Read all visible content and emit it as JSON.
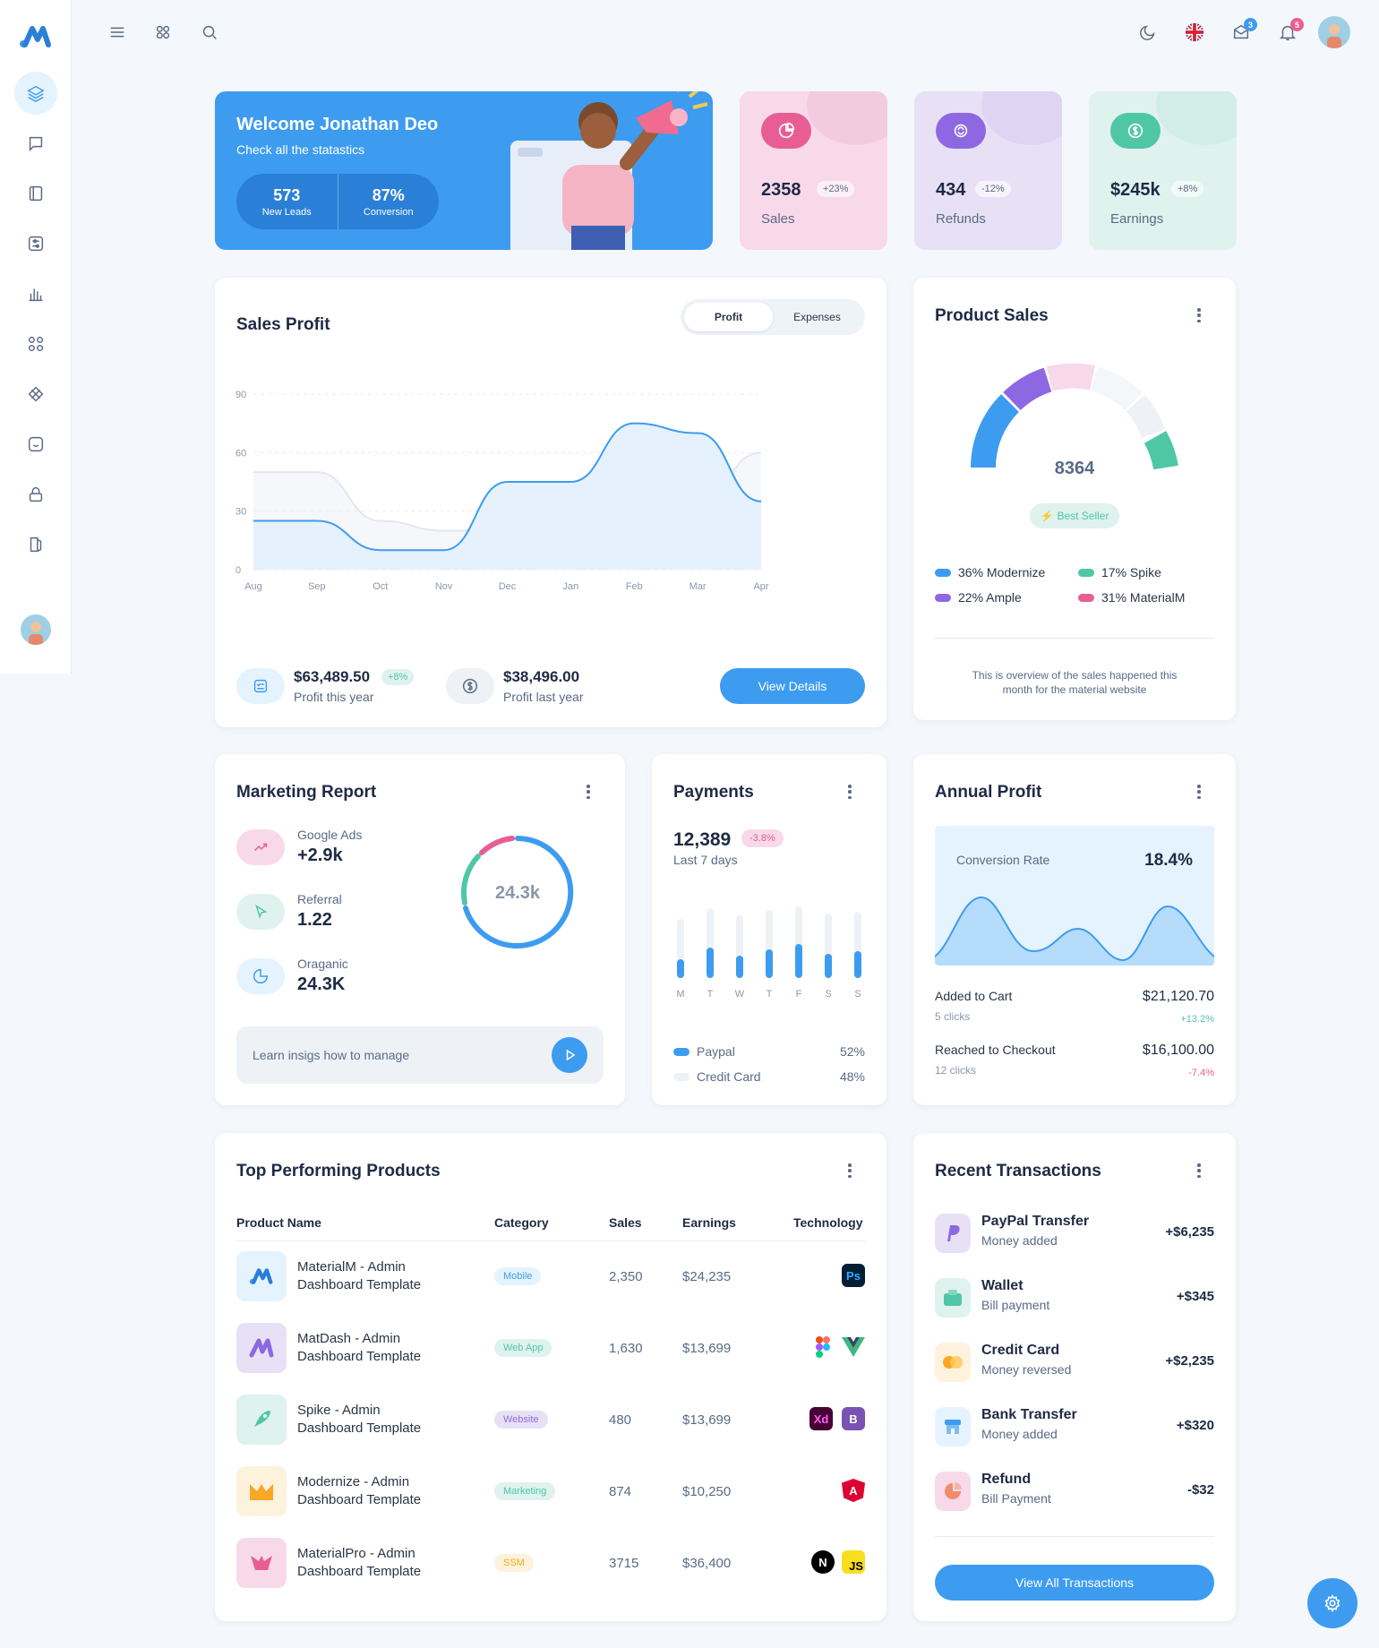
{
  "topbar": {
    "messages_badge": "3",
    "notifications_badge": "5"
  },
  "welcome": {
    "title": "Welcome Jonathan Deo",
    "subtitle": "Check all the statastics",
    "leads_value": "573",
    "leads_label": "New Leads",
    "conversion_value": "87%",
    "conversion_label": "Conversion"
  },
  "stats": [
    {
      "value": "2358",
      "change": "+23%",
      "label": "Sales",
      "color": "#f7d9ea",
      "accent": "#e85d94"
    },
    {
      "value": "434",
      "change": "-12%",
      "label": "Refunds",
      "color": "#e8e1f6",
      "accent": "#8e68e3"
    },
    {
      "value": "$245k",
      "change": "+8%",
      "label": "Earnings",
      "color": "#dff2ee",
      "accent": "#4fc7a7"
    }
  ],
  "sales_profit": {
    "title": "Sales Profit",
    "toggle": [
      "Profit",
      "Expenses"
    ],
    "profit_this_year": "$63,489.50",
    "profit_this_year_change": "+8%",
    "profit_this_year_label": "Profit this year",
    "profit_last_year": "$38,496.00",
    "profit_last_year_label": "Profit last year",
    "button": "View Details"
  },
  "chart_data": {
    "type": "area",
    "categories": [
      "Aug",
      "Sep",
      "Oct",
      "Nov",
      "Dec",
      "Jan",
      "Feb",
      "Mar",
      "Apr"
    ],
    "series": [
      {
        "values": [
          25,
          25,
          10,
          10,
          45,
          45,
          75,
          70,
          35
        ]
      },
      {
        "values": [
          50,
          50,
          25,
          20,
          20,
          20,
          40,
          35,
          60
        ]
      }
    ],
    "yticks": [
      0,
      30,
      60,
      90
    ],
    "ylim": [
      0,
      90
    ],
    "grid": true
  },
  "product_sales": {
    "title": "Product Sales",
    "total": "8364",
    "badge": "Best Seller",
    "legend": [
      "36% Modernize",
      "17% Spike",
      "22% Ample",
      "31% MaterialM"
    ],
    "note": "This is overview of the sales happened this month for the material website"
  },
  "marketing": {
    "title": "Marketing Report",
    "items": [
      {
        "label": "Google Ads",
        "value": "+2.9k"
      },
      {
        "label": "Referral",
        "value": "1.22"
      },
      {
        "label": "Oraganic",
        "value": "24.3K"
      }
    ],
    "donut_value": "24.3k",
    "cta": "Learn insigs how to manage"
  },
  "payments": {
    "title": "Payments",
    "value": "12,389",
    "change": "-3.8%",
    "period": "Last 7 days",
    "days": [
      "M",
      "T",
      "W",
      "T",
      "F",
      "S",
      "S"
    ],
    "levels": [
      0.25,
      0.4,
      0.3,
      0.38,
      0.45,
      0.32,
      0.36
    ],
    "rows": [
      {
        "label": "Paypal",
        "value": "52%"
      },
      {
        "label": "Credit Card",
        "value": "48%"
      }
    ]
  },
  "annual": {
    "title": "Annual Profit",
    "rate_label": "Conversion Rate",
    "rate_value": "18.4%",
    "rows": [
      {
        "label": "Added to Cart",
        "sub": "5 clicks",
        "amount": "$21,120.70",
        "change": "+13.2%"
      },
      {
        "label": "Reached to Checkout",
        "sub": "12 clicks",
        "amount": "$16,100.00",
        "change": "-7.4%"
      }
    ]
  },
  "top_products": {
    "title": "Top Performing Products",
    "headers": [
      "Product Name",
      "Category",
      "Sales",
      "Earnings",
      "Technology"
    ],
    "rows": [
      {
        "name": "MaterialM - Admin Dashboard Template",
        "category": "Mobile",
        "sales": "2,350",
        "earnings": "$24,235"
      },
      {
        "name": "MatDash - Admin Dashboard Template",
        "category": "Web App",
        "sales": "1,630",
        "earnings": "$13,699"
      },
      {
        "name": "Spike - Admin Dashboard Template",
        "category": "Website",
        "sales": "480",
        "earnings": "$13,699"
      },
      {
        "name": "Modernize - Admin Dashboard Template",
        "category": "Marketing",
        "sales": "874",
        "earnings": "$10,250"
      },
      {
        "name": "MaterialPro - Admin Dashboard Template",
        "category": "SSM",
        "sales": "3715",
        "earnings": "$36,400"
      }
    ],
    "tech_labels": {
      "ps": "Ps",
      "xd": "Xd",
      "b": "B",
      "a": "A",
      "n": "N",
      "js": "JS"
    }
  },
  "transactions": {
    "title": "Recent Transactions",
    "rows": [
      {
        "title": "PayPal Transfer",
        "sub": "Money added",
        "amount": "+$6,235"
      },
      {
        "title": "Wallet",
        "sub": "Bill payment",
        "amount": "+$345"
      },
      {
        "title": "Credit Card",
        "sub": "Money reversed",
        "amount": "+$2,235"
      },
      {
        "title": "Bank Transfer",
        "sub": "Money added",
        "amount": "+$320"
      },
      {
        "title": "Refund",
        "sub": "Bill Payment",
        "amount": "-$32"
      }
    ],
    "button": "View All Transactions"
  }
}
